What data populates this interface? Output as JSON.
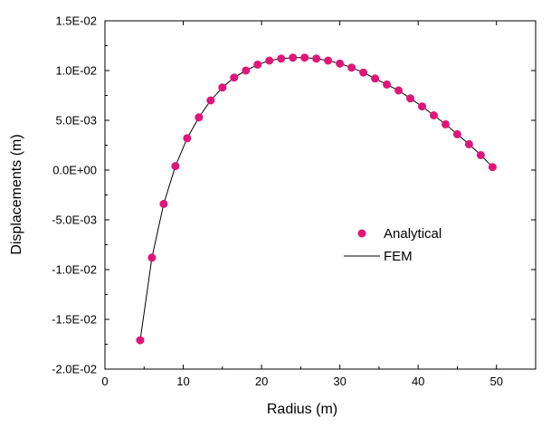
{
  "chart_data": {
    "type": "scatter",
    "title": "",
    "xlabel": "Radius (m)",
    "ylabel": "Displacements (m)",
    "xlim": [
      0,
      55
    ],
    "ylim": [
      -0.02,
      0.015
    ],
    "x_ticks": [
      0,
      10,
      20,
      30,
      40,
      50
    ],
    "x_tick_labels": [
      "0",
      "10",
      "20",
      "30",
      "40",
      "50"
    ],
    "y_ticks": [
      0.015,
      0.01,
      0.005,
      0.0,
      -0.005,
      -0.01,
      -0.015,
      -0.02
    ],
    "y_tick_labels": [
      "1.5E-02",
      "1.0E-02",
      "5.0E-03",
      "0.0E+00",
      "-5.0E-03",
      "-1.0E-02",
      "-1.5E-02",
      "-2.0E-02"
    ],
    "grid": false,
    "legend_position": "center-right",
    "series": [
      {
        "name": "Analytical",
        "kind": "markers",
        "color": "#e0157a",
        "x": [
          4.5,
          6.0,
          7.5,
          9.0,
          10.5,
          12.0,
          13.5,
          15.0,
          16.5,
          18.0,
          19.5,
          21.0,
          22.5,
          24.0,
          25.5,
          27.0,
          28.5,
          30.0,
          31.5,
          33.0,
          34.5,
          36.0,
          37.5,
          39.0,
          40.5,
          42.0,
          43.5,
          45.0,
          46.5,
          48.0,
          49.5
        ],
        "y": [
          -0.0171,
          -0.0088,
          -0.0034,
          0.0004,
          0.0032,
          0.0053,
          0.007,
          0.0083,
          0.0093,
          0.01,
          0.0106,
          0.011,
          0.0112,
          0.0113,
          0.0113,
          0.0112,
          0.011,
          0.0107,
          0.0103,
          0.0098,
          0.0092,
          0.0086,
          0.008,
          0.0072,
          0.0064,
          0.0055,
          0.0046,
          0.0036,
          0.0026,
          0.0015,
          0.0003
        ]
      },
      {
        "name": "FEM",
        "kind": "line",
        "color": "#000000",
        "x": [
          4.5,
          6.0,
          7.5,
          9.0,
          10.5,
          12.0,
          13.5,
          15.0,
          16.5,
          18.0,
          19.5,
          21.0,
          22.5,
          24.0,
          25.5,
          27.0,
          28.5,
          30.0,
          31.5,
          33.0,
          34.5,
          36.0,
          37.5,
          39.0,
          40.5,
          42.0,
          43.5,
          45.0,
          46.5,
          48.0,
          49.5
        ],
        "y": [
          -0.0171,
          -0.0088,
          -0.0034,
          0.0004,
          0.0032,
          0.0053,
          0.007,
          0.0083,
          0.0093,
          0.01,
          0.0106,
          0.011,
          0.0112,
          0.0113,
          0.0113,
          0.0112,
          0.011,
          0.0107,
          0.0103,
          0.0098,
          0.0092,
          0.0086,
          0.008,
          0.0072,
          0.0064,
          0.0055,
          0.0046,
          0.0036,
          0.0026,
          0.0015,
          0.0003
        ]
      }
    ]
  }
}
